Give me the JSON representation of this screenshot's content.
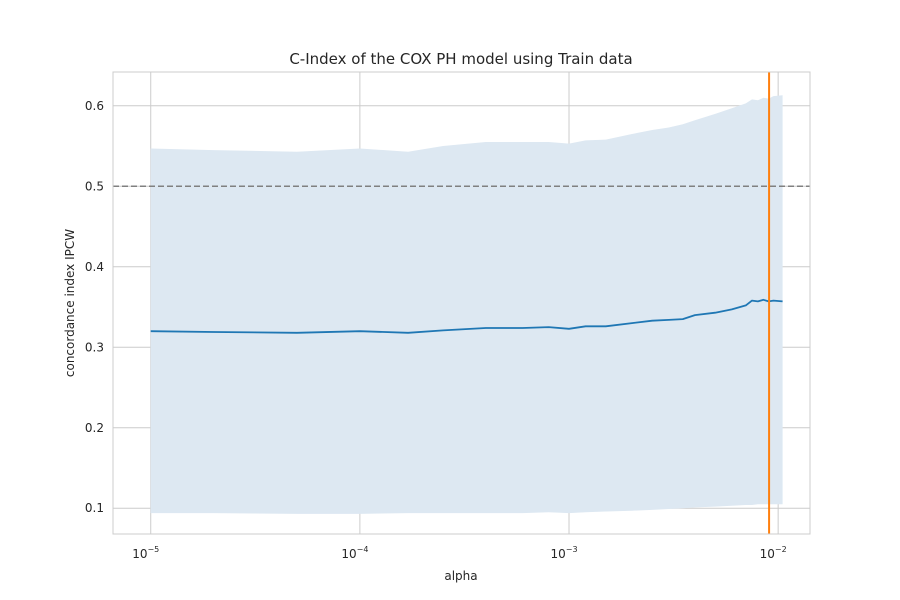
{
  "chart_data": {
    "type": "line",
    "title": "C-Index of the COX PH model using Train data",
    "xlabel": "alpha",
    "ylabel": "concordance index IPCW",
    "x_scale": "log",
    "xlim": [
      6.6e-06,
      0.0142
    ],
    "ylim": [
      0.068,
      0.642
    ],
    "grid": true,
    "x_ticks": [
      {
        "value": 1e-05,
        "base": "10",
        "exp": "−5"
      },
      {
        "value": 0.0001,
        "base": "10",
        "exp": "−4"
      },
      {
        "value": 0.001,
        "base": "10",
        "exp": "−3"
      },
      {
        "value": 0.01,
        "base": "10",
        "exp": "−2"
      }
    ],
    "y_ticks": [
      {
        "value": 0.1,
        "label": "0.1"
      },
      {
        "value": 0.2,
        "label": "0.2"
      },
      {
        "value": 0.3,
        "label": "0.3"
      },
      {
        "value": 0.4,
        "label": "0.4"
      },
      {
        "value": 0.5,
        "label": "0.5"
      },
      {
        "value": 0.6,
        "label": "0.6"
      }
    ],
    "series": [
      {
        "color": "#1f77b4",
        "band_color": "#dde8f2",
        "points": [
          {
            "x": 1e-05,
            "y": 0.32,
            "lo": 0.094,
            "hi": 0.547
          },
          {
            "x": 2e-05,
            "y": 0.319,
            "lo": 0.094,
            "hi": 0.545
          },
          {
            "x": 5e-05,
            "y": 0.318,
            "lo": 0.093,
            "hi": 0.543
          },
          {
            "x": 0.0001,
            "y": 0.32,
            "lo": 0.093,
            "hi": 0.547
          },
          {
            "x": 0.00017,
            "y": 0.318,
            "lo": 0.094,
            "hi": 0.543
          },
          {
            "x": 0.00025,
            "y": 0.321,
            "lo": 0.094,
            "hi": 0.55
          },
          {
            "x": 0.0004,
            "y": 0.324,
            "lo": 0.094,
            "hi": 0.555
          },
          {
            "x": 0.0006,
            "y": 0.324,
            "lo": 0.094,
            "hi": 0.555
          },
          {
            "x": 0.0008,
            "y": 0.325,
            "lo": 0.095,
            "hi": 0.555
          },
          {
            "x": 0.001,
            "y": 0.323,
            "lo": 0.094,
            "hi": 0.553
          },
          {
            "x": 0.0012,
            "y": 0.326,
            "lo": 0.095,
            "hi": 0.557
          },
          {
            "x": 0.0015,
            "y": 0.326,
            "lo": 0.096,
            "hi": 0.558
          },
          {
            "x": 0.002,
            "y": 0.33,
            "lo": 0.097,
            "hi": 0.565
          },
          {
            "x": 0.0025,
            "y": 0.333,
            "lo": 0.098,
            "hi": 0.57
          },
          {
            "x": 0.003,
            "y": 0.334,
            "lo": 0.099,
            "hi": 0.573
          },
          {
            "x": 0.0035,
            "y": 0.335,
            "lo": 0.1,
            "hi": 0.577
          },
          {
            "x": 0.004,
            "y": 0.34,
            "lo": 0.101,
            "hi": 0.582
          },
          {
            "x": 0.005,
            "y": 0.343,
            "lo": 0.102,
            "hi": 0.59
          },
          {
            "x": 0.006,
            "y": 0.347,
            "lo": 0.103,
            "hi": 0.597
          },
          {
            "x": 0.007,
            "y": 0.352,
            "lo": 0.104,
            "hi": 0.603
          },
          {
            "x": 0.0075,
            "y": 0.358,
            "lo": 0.104,
            "hi": 0.608
          },
          {
            "x": 0.008,
            "y": 0.357,
            "lo": 0.105,
            "hi": 0.607
          },
          {
            "x": 0.0085,
            "y": 0.359,
            "lo": 0.105,
            "hi": 0.61
          },
          {
            "x": 0.009,
            "y": 0.357,
            "lo": 0.105,
            "hi": 0.609
          },
          {
            "x": 0.0095,
            "y": 0.358,
            "lo": 0.105,
            "hi": 0.612
          },
          {
            "x": 0.0105,
            "y": 0.357,
            "lo": 0.105,
            "hi": 0.613
          }
        ]
      }
    ],
    "hline": {
      "y": 0.5,
      "color": "#808080",
      "style": "dashed"
    },
    "vline": {
      "x": 0.00905,
      "color": "#ff7f0e"
    }
  }
}
